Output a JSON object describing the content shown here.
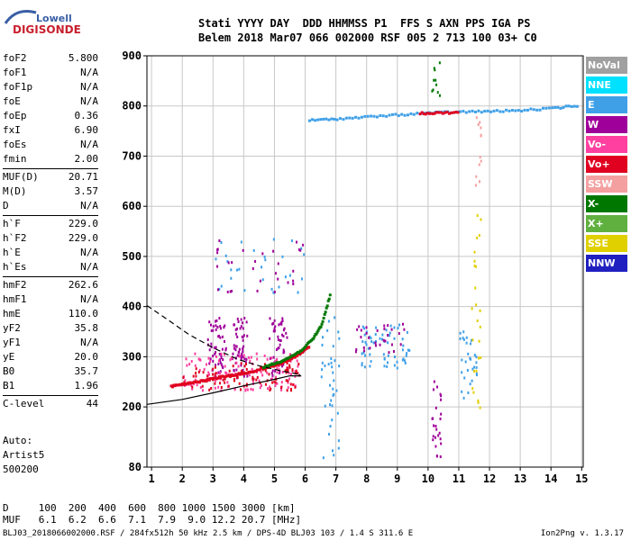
{
  "logo": {
    "line1": "Lowell",
    "line2": "DIGISONDE"
  },
  "header": {
    "row1": "Stati YYYY DAY  DDD HHMMSS P1  FFS S AXN PPS IGA PS",
    "row2": "Belem 2018 Mar07 066 002000 RSF 005 2 713 100 03+ C0"
  },
  "params_a": [
    {
      "name": "foF2",
      "value": "5.800"
    },
    {
      "name": "foF1",
      "value": "N/A"
    },
    {
      "name": "foF1p",
      "value": "N/A"
    },
    {
      "name": "foE",
      "value": "N/A"
    },
    {
      "name": "foEp",
      "value": "0.36"
    },
    {
      "name": "fxI",
      "value": "6.90"
    },
    {
      "name": "foEs",
      "value": "N/A"
    },
    {
      "name": "fmin",
      "value": "2.00"
    }
  ],
  "params_b": [
    {
      "name": "MUF(D)",
      "value": "20.71"
    },
    {
      "name": "M(D)",
      "value": "3.57"
    },
    {
      "name": "D",
      "value": "N/A"
    }
  ],
  "params_c": [
    {
      "name": "h`F",
      "value": "229.0"
    },
    {
      "name": "h`F2",
      "value": "229.0"
    },
    {
      "name": "h`E",
      "value": "N/A"
    },
    {
      "name": "h`Es",
      "value": "N/A"
    }
  ],
  "params_d": [
    {
      "name": "hmF2",
      "value": "262.6"
    },
    {
      "name": "hmF1",
      "value": "N/A"
    },
    {
      "name": "hmE",
      "value": "110.0"
    },
    {
      "name": "yF2",
      "value": "35.8"
    },
    {
      "name": "yF1",
      "value": "N/A"
    },
    {
      "name": "yE",
      "value": "20.0"
    },
    {
      "name": "B0",
      "value": "35.7"
    },
    {
      "name": "B1",
      "value": "1.96"
    }
  ],
  "params_e": [
    {
      "name": "C-level",
      "value": "44"
    }
  ],
  "auto": {
    "line1": "Auto:",
    "line2": "Artist5",
    "line3": "500200"
  },
  "legend": [
    {
      "label": "NoVal",
      "color": "#a0a0a0"
    },
    {
      "label": "NNE",
      "color": "#00e0ff"
    },
    {
      "label": "E",
      "color": "#3fa0e8"
    },
    {
      "label": "W",
      "color": "#a0009a"
    },
    {
      "label": "Vo-",
      "color": "#ff40a0"
    },
    {
      "label": "Vo+",
      "color": "#e00020"
    },
    {
      "label": "SSW",
      "color": "#f4a0a0"
    },
    {
      "label": "X-",
      "color": "#007800"
    },
    {
      "label": "X+",
      "color": "#60b040"
    },
    {
      "label": "SSE",
      "color": "#e0d000"
    },
    {
      "label": "NNW",
      "color": "#2020c0"
    }
  ],
  "footer": {
    "row_d": "D     100  200  400  600  800 1000 1500 3000 [km]",
    "row_muf": "MUF   6.1  6.2  6.6  7.1  7.9  9.0 12.2 20.7 [MHz]",
    "info": "BLJ03_2018066002000.RSF / 284fx512h 50 kHz 2.5 km / DPS-4D BLJ03 103 / 1.4 S 311.6 E",
    "version": "Ion2Png v. 1.3.17"
  },
  "chart_data": {
    "type": "scatter",
    "xlim": [
      0.85,
      15.05
    ],
    "ylim": [
      80,
      900
    ],
    "x_ticks": [
      1,
      2,
      3,
      4,
      5,
      6,
      7,
      8,
      9,
      10,
      11,
      12,
      13,
      14,
      15
    ],
    "y_ticks": [
      80,
      200,
      300,
      400,
      500,
      600,
      700,
      800,
      900
    ],
    "grid": true,
    "xlabel": "",
    "ylabel": "",
    "curves": [
      {
        "style": "solid",
        "color": "#000000",
        "points": [
          [
            0.85,
            205
          ],
          [
            2.0,
            215
          ],
          [
            3.0,
            228
          ],
          [
            4.0,
            242
          ],
          [
            5.0,
            255
          ],
          [
            5.5,
            262
          ],
          [
            5.85,
            262
          ],
          [
            5.8,
            265
          ]
        ]
      },
      {
        "style": "dashed",
        "color": "#000000",
        "points": [
          [
            0.85,
            402
          ],
          [
            1.5,
            375
          ],
          [
            2.2,
            345
          ],
          [
            3.0,
            318
          ],
          [
            3.8,
            295
          ],
          [
            4.5,
            282
          ],
          [
            5.2,
            272
          ],
          [
            5.8,
            265
          ]
        ]
      }
    ],
    "traces": [
      {
        "color_key": "Vo+",
        "points": [
          [
            1.6,
            242
          ],
          [
            2.0,
            246
          ],
          [
            2.4,
            250
          ],
          [
            2.8,
            255
          ],
          [
            3.2,
            260
          ],
          [
            3.6,
            264
          ],
          [
            4.0,
            268
          ],
          [
            4.4,
            274
          ],
          [
            4.8,
            281
          ],
          [
            5.2,
            288
          ],
          [
            5.6,
            300
          ],
          [
            5.9,
            312
          ],
          [
            6.1,
            322
          ]
        ]
      },
      {
        "color_key": "X-",
        "points": [
          [
            4.6,
            280
          ],
          [
            5.0,
            288
          ],
          [
            5.4,
            298
          ],
          [
            5.8,
            312
          ],
          [
            6.2,
            335
          ],
          [
            6.5,
            365
          ],
          [
            6.8,
            430
          ]
        ]
      },
      {
        "color_key": "E",
        "points": [
          [
            6.1,
            772
          ],
          [
            7.0,
            775
          ],
          [
            8.0,
            779
          ],
          [
            9.0,
            783
          ],
          [
            10.0,
            787
          ],
          [
            11.0,
            789
          ],
          [
            12.0,
            790
          ],
          [
            13.0,
            792
          ],
          [
            14.0,
            796
          ],
          [
            14.9,
            802
          ]
        ]
      },
      {
        "color_key": "Vo+",
        "points": [
          [
            9.7,
            786
          ],
          [
            10.3,
            787
          ],
          [
            11.0,
            788
          ]
        ]
      }
    ],
    "scatter_clusters": [
      {
        "color_key": "W",
        "x_range": [
          2.8,
          3.4
        ],
        "y_range": [
          260,
          380
        ],
        "n": 55
      },
      {
        "color_key": "W",
        "x_range": [
          3.6,
          4.1
        ],
        "y_range": [
          260,
          380
        ],
        "n": 55
      },
      {
        "color_key": "W",
        "x_range": [
          4.8,
          5.4
        ],
        "y_range": [
          260,
          380
        ],
        "n": 45
      },
      {
        "color_key": "Vo-",
        "x_range": [
          2.0,
          5.8
        ],
        "y_range": [
          235,
          310
        ],
        "n": 120
      },
      {
        "color_key": "Vo+",
        "x_range": [
          2.0,
          5.8
        ],
        "y_range": [
          235,
          290
        ],
        "n": 90
      },
      {
        "color_key": "E",
        "x_range": [
          7.8,
          9.4
        ],
        "y_range": [
          280,
          370
        ],
        "n": 60
      },
      {
        "color_key": "W",
        "x_range": [
          7.6,
          9.2
        ],
        "y_range": [
          310,
          370
        ],
        "n": 30
      },
      {
        "color_key": "E",
        "x_range": [
          6.5,
          7.1
        ],
        "y_range": [
          90,
          400
        ],
        "n": 40
      },
      {
        "color_key": "E",
        "x_range": [
          11.0,
          11.6
        ],
        "y_range": [
          220,
          360
        ],
        "n": 30
      },
      {
        "color_key": "SSE",
        "x_range": [
          11.4,
          11.7
        ],
        "y_range": [
          180,
          600
        ],
        "n": 25
      },
      {
        "color_key": "W",
        "x_range": [
          10.1,
          10.4
        ],
        "y_range": [
          90,
          260
        ],
        "n": 25
      },
      {
        "color_key": "E",
        "x_range": [
          3.0,
          6.1
        ],
        "y_range": [
          430,
          540
        ],
        "n": 30
      },
      {
        "color_key": "W",
        "x_range": [
          3.0,
          6.1
        ],
        "y_range": [
          430,
          540
        ],
        "n": 30
      },
      {
        "color_key": "X-",
        "x_range": [
          10.1,
          10.4
        ],
        "y_range": [
          820,
          890
        ],
        "n": 10
      },
      {
        "color_key": "SSW",
        "x_range": [
          11.5,
          11.7
        ],
        "y_range": [
          640,
          780
        ],
        "n": 12
      }
    ]
  }
}
